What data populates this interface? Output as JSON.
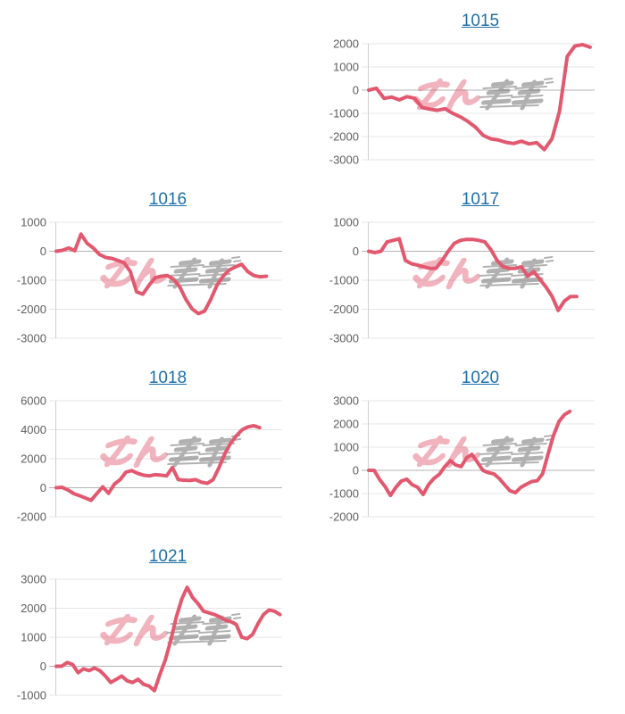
{
  "page": {
    "background": "#ffffff",
    "watermark": {
      "text": "みんかぶ",
      "pink_color": "#e2596f",
      "gray_color": "#555555",
      "opacity": 0.45
    },
    "colors": {
      "line": "#e2596f",
      "title_link": "#1d6fa8",
      "gridline": "#e4e4e4",
      "zero_line": "#b3b3b3",
      "axis_line": "#cfcfcf",
      "tick_label": "#5f5f5f"
    }
  },
  "chart_data": [
    {
      "type": "line",
      "title": "1015",
      "slot": 1,
      "ymin": -3000,
      "ymax": 2000,
      "ytick_step": 1000,
      "ytick_labels": [
        "2000",
        "1000",
        "0",
        "-1000",
        "-2000",
        "-3000"
      ],
      "grid": true,
      "width_frac": 0.98,
      "values": [
        0,
        80,
        -350,
        -300,
        -420,
        -280,
        -350,
        -750,
        -820,
        -870,
        -800,
        -1000,
        -1150,
        -1350,
        -1600,
        -1950,
        -2100,
        -2150,
        -2250,
        -2300,
        -2200,
        -2320,
        -2260,
        -2560,
        -2100,
        -900,
        1450,
        1900,
        1960,
        1850
      ]
    },
    {
      "type": "line",
      "title": "1016",
      "slot": 2,
      "ymin": -3000,
      "ymax": 1000,
      "ytick_step": 1000,
      "ytick_labels": [
        "1000",
        "0",
        "-1000",
        "-2000",
        "-3000"
      ],
      "grid": true,
      "width_frac": 0.93,
      "values": [
        0,
        30,
        110,
        20,
        590,
        270,
        110,
        -110,
        -215,
        -250,
        -320,
        -400,
        -700,
        -1400,
        -1480,
        -1180,
        -915,
        -860,
        -840,
        -970,
        -1235,
        -1665,
        -1990,
        -2150,
        -2065,
        -1665,
        -1180,
        -860,
        -645,
        -540,
        -450,
        -700,
        -840,
        -880,
        -860
      ]
    },
    {
      "type": "line",
      "title": "1017",
      "slot": 3,
      "ymin": -3000,
      "ymax": 1000,
      "ytick_step": 1000,
      "ytick_labels": [
        "1000",
        "0",
        "-1000",
        "-2000",
        "-3000"
      ],
      "grid": true,
      "width_frac": 0.92,
      "values": [
        0,
        -45,
        0,
        320,
        375,
        430,
        -320,
        -430,
        -480,
        -540,
        -590,
        -590,
        -320,
        0,
        270,
        375,
        410,
        410,
        375,
        320,
        50,
        -320,
        -540,
        -590,
        -590,
        -540,
        -860,
        -700,
        -970,
        -1235,
        -1560,
        -2040,
        -1720,
        -1560,
        -1560
      ]
    },
    {
      "type": "line",
      "title": "1018",
      "slot": 4,
      "ymin": -2000,
      "ymax": 6000,
      "ytick_step": 2000,
      "ytick_labels": [
        "6000",
        "4000",
        "2000",
        "0",
        "-2000"
      ],
      "grid": true,
      "width_frac": 0.9,
      "values": [
        0,
        30,
        -150,
        -400,
        -550,
        -700,
        -870,
        -400,
        60,
        -380,
        250,
        560,
        1080,
        1180,
        1000,
        870,
        820,
        900,
        870,
        820,
        1400,
        560,
        520,
        500,
        560,
        380,
        300,
        560,
        1380,
        2330,
        3060,
        3580,
        4000,
        4200,
        4280,
        4150
      ]
    },
    {
      "type": "line",
      "title": "1020",
      "slot": 5,
      "ymin": -2000,
      "ymax": 3000,
      "ytick_step": 1000,
      "ytick_labels": [
        "3000",
        "2000",
        "1000",
        "0",
        "-1000",
        "-2000"
      ],
      "grid": true,
      "width_frac": 0.89,
      "values": [
        0,
        0,
        -400,
        -700,
        -1080,
        -730,
        -460,
        -380,
        -620,
        -730,
        -1040,
        -620,
        -350,
        -170,
        160,
        420,
        230,
        160,
        540,
        690,
        350,
        0,
        -100,
        -150,
        -350,
        -620,
        -880,
        -960,
        -730,
        -600,
        -480,
        -450,
        -150,
        700,
        1500,
        2100,
        2400,
        2540
      ]
    },
    {
      "type": "line",
      "title": "1021",
      "slot": 6,
      "ymin": -1000,
      "ymax": 3000,
      "ytick_step": 1000,
      "ytick_labels": [
        "3000",
        "2000",
        "1000",
        "0",
        "-1000"
      ],
      "grid": true,
      "width_frac": 0.99,
      "values": [
        0,
        0,
        130,
        60,
        -220,
        -90,
        -150,
        -60,
        -150,
        -340,
        -560,
        -450,
        -340,
        -500,
        -560,
        -450,
        -620,
        -680,
        -840,
        -280,
        220,
        900,
        1690,
        2310,
        2720,
        2370,
        2160,
        1900,
        1840,
        1780,
        1700,
        1590,
        1540,
        1440,
        1000,
        950,
        1100,
        1470,
        1780,
        1940,
        1900,
        1780
      ]
    }
  ]
}
